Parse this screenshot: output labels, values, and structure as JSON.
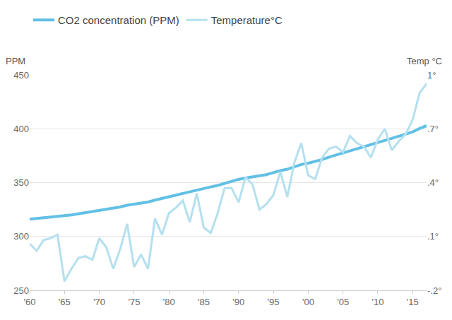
{
  "chart_data": {
    "type": "line",
    "y_label": "PPM",
    "y2_label": "Temp °C",
    "x": [
      1960,
      1961,
      1962,
      1963,
      1964,
      1965,
      1966,
      1967,
      1968,
      1969,
      1970,
      1971,
      1972,
      1973,
      1974,
      1975,
      1976,
      1977,
      1978,
      1979,
      1980,
      1981,
      1982,
      1983,
      1984,
      1985,
      1986,
      1987,
      1988,
      1989,
      1990,
      1991,
      1992,
      1993,
      1994,
      1995,
      1996,
      1997,
      1998,
      1999,
      2000,
      2001,
      2002,
      2003,
      2004,
      2005,
      2006,
      2007,
      2008,
      2009,
      2010,
      2011,
      2012,
      2013,
      2014,
      2015,
      2016,
      2017
    ],
    "xlim": [
      1960,
      2017
    ],
    "xticks": [
      {
        "value": 1960,
        "label": "'60"
      },
      {
        "value": 1965,
        "label": "'65"
      },
      {
        "value": 1970,
        "label": "'70"
      },
      {
        "value": 1975,
        "label": "'75"
      },
      {
        "value": 1980,
        "label": "'80"
      },
      {
        "value": 1985,
        "label": "'85"
      },
      {
        "value": 1990,
        "label": "'90"
      },
      {
        "value": 1995,
        "label": "'95"
      },
      {
        "value": 2000,
        "label": "'00"
      },
      {
        "value": 2005,
        "label": "'05"
      },
      {
        "value": 2010,
        "label": "'10"
      },
      {
        "value": 2015,
        "label": "'15"
      }
    ],
    "ylim": [
      250,
      450
    ],
    "yticks": [
      250,
      300,
      350,
      400,
      450
    ],
    "y2lim": [
      -0.2,
      1.0
    ],
    "y2ticks": [
      {
        "value": -0.2,
        "label": "-.2°"
      },
      {
        "value": 0.1,
        "label": ".1°"
      },
      {
        "value": 0.4,
        "label": ".4°"
      },
      {
        "value": 0.7,
        "label": ".7°"
      },
      {
        "value": 1.0,
        "label": "1°"
      }
    ],
    "grid": true,
    "legend": "top-left",
    "series": [
      {
        "name": "CO2 concentration (PPM)",
        "color": "#62c0e4",
        "values": [
          316.0,
          316.8,
          317.6,
          318.3,
          318.9,
          319.4,
          320.0,
          321.0,
          321.9,
          322.8,
          324.0,
          325.0,
          325.8,
          327.4,
          329.0,
          329.8,
          330.7,
          332.0,
          333.8,
          335.4,
          336.9,
          338.6,
          340.0,
          341.3,
          343.0,
          344.6,
          346.0,
          347.4,
          349.4,
          351.4,
          353.0,
          354.3,
          355.2,
          356.0,
          357.4,
          359.3,
          361.2,
          362.4,
          364.6,
          366.8,
          368.0,
          369.5,
          371.4,
          373.7,
          375.6,
          377.4,
          379.4,
          381.3,
          383.0,
          384.8,
          387.0,
          388.8,
          390.8,
          393.0,
          395.0,
          397.2,
          400.2,
          402.8
        ]
      },
      {
        "name": "Temperature°C",
        "color": "#b4e0ef",
        "axis": "y2",
        "values": [
          0.06,
          0.02,
          0.08,
          0.09,
          0.11,
          -0.15,
          -0.08,
          -0.02,
          -0.01,
          -0.03,
          0.09,
          0.04,
          -0.08,
          0.03,
          0.17,
          -0.07,
          0.0,
          -0.08,
          0.2,
          0.11,
          0.23,
          0.26,
          0.3,
          0.18,
          0.34,
          0.15,
          0.12,
          0.23,
          0.37,
          0.37,
          0.29,
          0.43,
          0.39,
          0.25,
          0.28,
          0.33,
          0.46,
          0.32,
          0.51,
          0.62,
          0.44,
          0.42,
          0.54,
          0.59,
          0.6,
          0.57,
          0.66,
          0.62,
          0.6,
          0.54,
          0.64,
          0.7,
          0.58,
          0.63,
          0.67,
          0.75,
          0.9,
          0.95
        ]
      }
    ]
  }
}
